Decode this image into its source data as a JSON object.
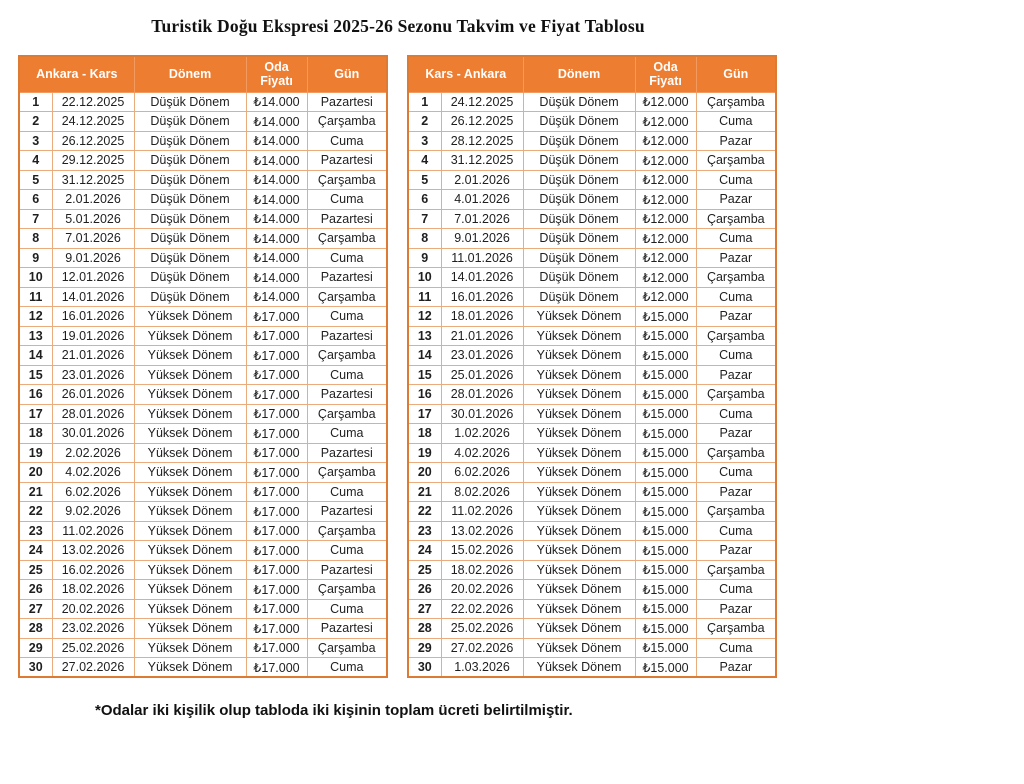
{
  "title": "Turistik Doğu Ekspresi 2025-26 Sezonu Takvim ve Fiyat Tablosu",
  "footnote": "*Odalar iki kişilik olup tabloda iki kişinin toplam ücreti belirtilmiştir.",
  "colors": {
    "header_bg": "#ED7D31",
    "header_text": "#FFFFFF",
    "header_divider": "#F29A60",
    "cell_border": "#EBAC7D",
    "outer_border": "#DD7A33"
  },
  "tables": [
    {
      "route": "Ankara - Kars",
      "headers": {
        "route": "Ankara - Kars",
        "period": "Dönem",
        "price": "Oda Fiyatı",
        "day": "Gün"
      },
      "rows": [
        [
          "1",
          "22.12.2025",
          "Düşük Dönem",
          "₺14.000",
          "Pazartesi"
        ],
        [
          "2",
          "24.12.2025",
          "Düşük Dönem",
          "₺14.000",
          "Çarşamba"
        ],
        [
          "3",
          "26.12.2025",
          "Düşük Dönem",
          "₺14.000",
          "Cuma"
        ],
        [
          "4",
          "29.12.2025",
          "Düşük Dönem",
          "₺14.000",
          "Pazartesi"
        ],
        [
          "5",
          "31.12.2025",
          "Düşük Dönem",
          "₺14.000",
          "Çarşamba"
        ],
        [
          "6",
          "2.01.2026",
          "Düşük Dönem",
          "₺14.000",
          "Cuma"
        ],
        [
          "7",
          "5.01.2026",
          "Düşük Dönem",
          "₺14.000",
          "Pazartesi"
        ],
        [
          "8",
          "7.01.2026",
          "Düşük Dönem",
          "₺14.000",
          "Çarşamba"
        ],
        [
          "9",
          "9.01.2026",
          "Düşük Dönem",
          "₺14.000",
          "Cuma"
        ],
        [
          "10",
          "12.01.2026",
          "Düşük Dönem",
          "₺14.000",
          "Pazartesi"
        ],
        [
          "11",
          "14.01.2026",
          "Düşük Dönem",
          "₺14.000",
          "Çarşamba"
        ],
        [
          "12",
          "16.01.2026",
          "Yüksek Dönem",
          "₺17.000",
          "Cuma"
        ],
        [
          "13",
          "19.01.2026",
          "Yüksek Dönem",
          "₺17.000",
          "Pazartesi"
        ],
        [
          "14",
          "21.01.2026",
          "Yüksek Dönem",
          "₺17.000",
          "Çarşamba"
        ],
        [
          "15",
          "23.01.2026",
          "Yüksek Dönem",
          "₺17.000",
          "Cuma"
        ],
        [
          "16",
          "26.01.2026",
          "Yüksek Dönem",
          "₺17.000",
          "Pazartesi"
        ],
        [
          "17",
          "28.01.2026",
          "Yüksek Dönem",
          "₺17.000",
          "Çarşamba"
        ],
        [
          "18",
          "30.01.2026",
          "Yüksek Dönem",
          "₺17.000",
          "Cuma"
        ],
        [
          "19",
          "2.02.2026",
          "Yüksek Dönem",
          "₺17.000",
          "Pazartesi"
        ],
        [
          "20",
          "4.02.2026",
          "Yüksek Dönem",
          "₺17.000",
          "Çarşamba"
        ],
        [
          "21",
          "6.02.2026",
          "Yüksek Dönem",
          "₺17.000",
          "Cuma"
        ],
        [
          "22",
          "9.02.2026",
          "Yüksek Dönem",
          "₺17.000",
          "Pazartesi"
        ],
        [
          "23",
          "11.02.2026",
          "Yüksek Dönem",
          "₺17.000",
          "Çarşamba"
        ],
        [
          "24",
          "13.02.2026",
          "Yüksek Dönem",
          "₺17.000",
          "Cuma"
        ],
        [
          "25",
          "16.02.2026",
          "Yüksek Dönem",
          "₺17.000",
          "Pazartesi"
        ],
        [
          "26",
          "18.02.2026",
          "Yüksek Dönem",
          "₺17.000",
          "Çarşamba"
        ],
        [
          "27",
          "20.02.2026",
          "Yüksek Dönem",
          "₺17.000",
          "Cuma"
        ],
        [
          "28",
          "23.02.2026",
          "Yüksek Dönem",
          "₺17.000",
          "Pazartesi"
        ],
        [
          "29",
          "25.02.2026",
          "Yüksek Dönem",
          "₺17.000",
          "Çarşamba"
        ],
        [
          "30",
          "27.02.2026",
          "Yüksek Dönem",
          "₺17.000",
          "Cuma"
        ]
      ]
    },
    {
      "route": "Kars - Ankara",
      "headers": {
        "route": "Kars - Ankara",
        "period": "Dönem",
        "price": "Oda Fiyatı",
        "day": "Gün"
      },
      "rows": [
        [
          "1",
          "24.12.2025",
          "Düşük Dönem",
          "₺12.000",
          "Çarşamba"
        ],
        [
          "2",
          "26.12.2025",
          "Düşük Dönem",
          "₺12.000",
          "Cuma"
        ],
        [
          "3",
          "28.12.2025",
          "Düşük Dönem",
          "₺12.000",
          "Pazar"
        ],
        [
          "4",
          "31.12.2025",
          "Düşük Dönem",
          "₺12.000",
          "Çarşamba"
        ],
        [
          "5",
          "2.01.2026",
          "Düşük Dönem",
          "₺12.000",
          "Cuma"
        ],
        [
          "6",
          "4.01.2026",
          "Düşük Dönem",
          "₺12.000",
          "Pazar"
        ],
        [
          "7",
          "7.01.2026",
          "Düşük Dönem",
          "₺12.000",
          "Çarşamba"
        ],
        [
          "8",
          "9.01.2026",
          "Düşük Dönem",
          "₺12.000",
          "Cuma"
        ],
        [
          "9",
          "11.01.2026",
          "Düşük Dönem",
          "₺12.000",
          "Pazar"
        ],
        [
          "10",
          "14.01.2026",
          "Düşük Dönem",
          "₺12.000",
          "Çarşamba"
        ],
        [
          "11",
          "16.01.2026",
          "Düşük Dönem",
          "₺12.000",
          "Cuma"
        ],
        [
          "12",
          "18.01.2026",
          "Yüksek Dönem",
          "₺15.000",
          "Pazar"
        ],
        [
          "13",
          "21.01.2026",
          "Yüksek Dönem",
          "₺15.000",
          "Çarşamba"
        ],
        [
          "14",
          "23.01.2026",
          "Yüksek Dönem",
          "₺15.000",
          "Cuma"
        ],
        [
          "15",
          "25.01.2026",
          "Yüksek Dönem",
          "₺15.000",
          "Pazar"
        ],
        [
          "16",
          "28.01.2026",
          "Yüksek Dönem",
          "₺15.000",
          "Çarşamba"
        ],
        [
          "17",
          "30.01.2026",
          "Yüksek Dönem",
          "₺15.000",
          "Cuma"
        ],
        [
          "18",
          "1.02.2026",
          "Yüksek Dönem",
          "₺15.000",
          "Pazar"
        ],
        [
          "19",
          "4.02.2026",
          "Yüksek Dönem",
          "₺15.000",
          "Çarşamba"
        ],
        [
          "20",
          "6.02.2026",
          "Yüksek Dönem",
          "₺15.000",
          "Cuma"
        ],
        [
          "21",
          "8.02.2026",
          "Yüksek Dönem",
          "₺15.000",
          "Pazar"
        ],
        [
          "22",
          "11.02.2026",
          "Yüksek Dönem",
          "₺15.000",
          "Çarşamba"
        ],
        [
          "23",
          "13.02.2026",
          "Yüksek Dönem",
          "₺15.000",
          "Cuma"
        ],
        [
          "24",
          "15.02.2026",
          "Yüksek Dönem",
          "₺15.000",
          "Pazar"
        ],
        [
          "25",
          "18.02.2026",
          "Yüksek Dönem",
          "₺15.000",
          "Çarşamba"
        ],
        [
          "26",
          "20.02.2026",
          "Yüksek Dönem",
          "₺15.000",
          "Cuma"
        ],
        [
          "27",
          "22.02.2026",
          "Yüksek Dönem",
          "₺15.000",
          "Pazar"
        ],
        [
          "28",
          "25.02.2026",
          "Yüksek Dönem",
          "₺15.000",
          "Çarşamba"
        ],
        [
          "29",
          "27.02.2026",
          "Yüksek Dönem",
          "₺15.000",
          "Cuma"
        ],
        [
          "30",
          "1.03.2026",
          "Yüksek Dönem",
          "₺15.000",
          "Pazar"
        ]
      ]
    }
  ]
}
